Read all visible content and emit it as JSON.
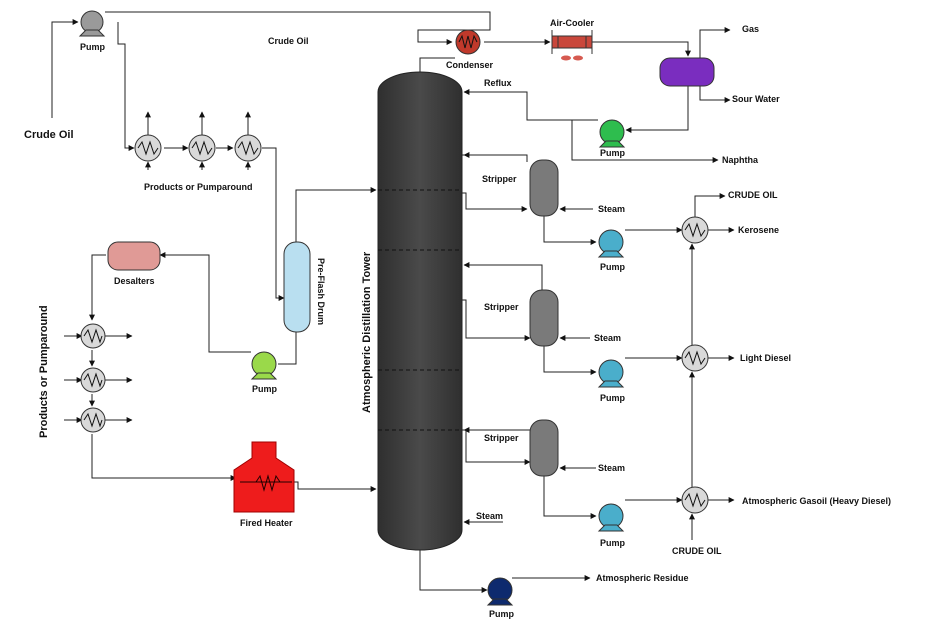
{
  "colors": {
    "tower": "#404040",
    "stripper": "#7a7a7a",
    "pump_grey": "#9a9a9a",
    "pump_green_reflux": "#2ebd4e",
    "pump_green_feed": "#9ad94a",
    "pump_blue": "#4aaecb",
    "pump_navy": "#0e2a6e",
    "condenser": "#c0392b",
    "air_cooler": "#c9473b",
    "fan": "#d65a50",
    "accumulator": "#7a2dbf",
    "desalter": "#e09a96",
    "preflash": "#b9dff0",
    "heater": "#ee1c1c",
    "exchanger": "#d9d9d9"
  },
  "labels": {
    "crude_oil_feed": "Crude Oil",
    "crude_oil_line": "Crude Oil",
    "pump": "Pump",
    "condenser": "Condenser",
    "air_cooler": "Air-Cooler",
    "gas": "Gas",
    "sour_water": "Sour Water",
    "reflux": "Reflux",
    "naphtha": "Naphtha",
    "products_pumparound_top": "Products or Pumparound",
    "products_pumparound_left": "Products or Pumparound",
    "desalters": "Desalters",
    "preflash_drum": "Pre-Flash Drum",
    "tower": "Atmospheric Distillation Tower",
    "fired_heater": "Fired Heater",
    "stripper": "Stripper",
    "steam": "Steam",
    "crude_oil_hx": "CRUDE OIL",
    "kerosene": "Kerosene",
    "light_diesel": "Light Diesel",
    "atm_gasoil": "Atmospheric Gasoil (Heavy Diesel)",
    "atm_residue": "Atmospheric Residue"
  }
}
